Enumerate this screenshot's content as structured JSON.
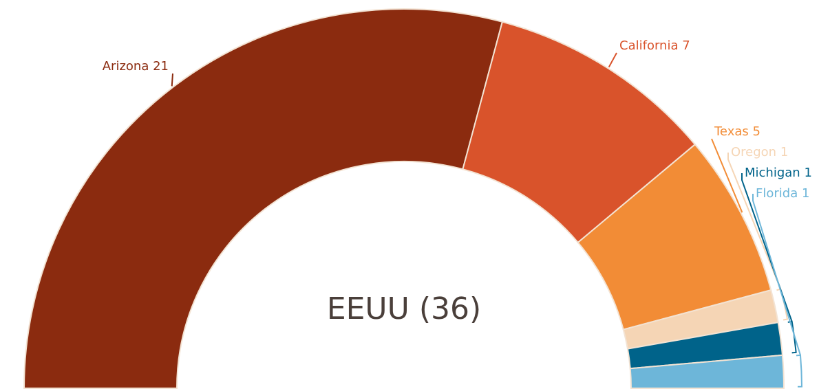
{
  "chart_data": {
    "type": "half_donut",
    "center_label": "EEUU (36)",
    "categories": [
      "Arizona",
      "California",
      "Texas",
      "Oregon",
      "Michigan",
      "Florida"
    ],
    "values": [
      21,
      7,
      5,
      1,
      1,
      1
    ],
    "colors": [
      "#8b2b0f",
      "#d9532b",
      "#f28c36",
      "#f5d5b5",
      "#00638a",
      "#6db6d9"
    ]
  }
}
